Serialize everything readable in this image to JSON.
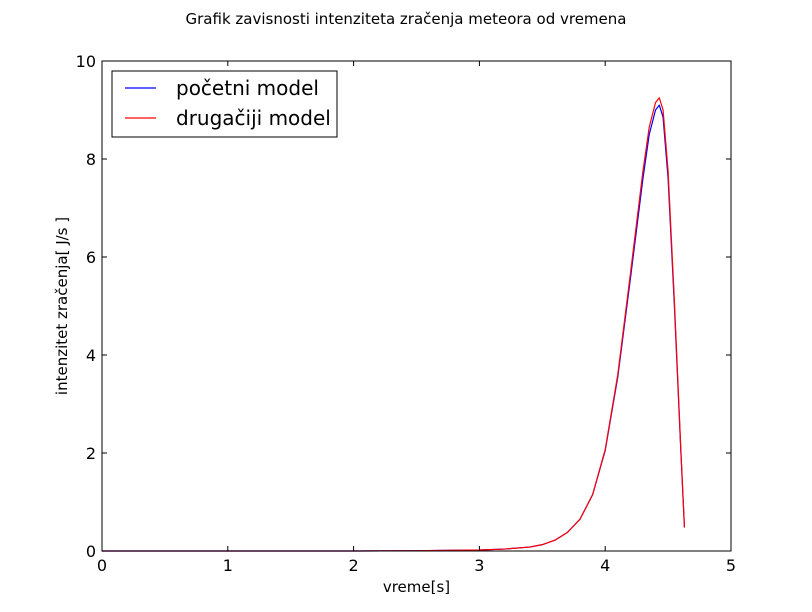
{
  "chart_data": {
    "type": "line",
    "title": "Grafik zavisnosti intenziteta zračenja meteora od vremena",
    "xlabel": "vreme[s]",
    "ylabel": "intenzitet zračenja[ J/s ]",
    "xlim": [
      0,
      5
    ],
    "ylim": [
      0,
      10
    ],
    "xticks": [
      0,
      1,
      2,
      3,
      4,
      5
    ],
    "yticks": [
      0,
      2,
      4,
      6,
      8,
      10
    ],
    "xtick_labels": [
      "0",
      "1",
      "2",
      "3",
      "4",
      "5"
    ],
    "ytick_labels": [
      "0",
      "2",
      "4",
      "6",
      "8",
      "10"
    ],
    "grid": false,
    "legend_position": "top-left",
    "series": [
      {
        "name": "početni model",
        "color": "#0000ff",
        "x": [
          0,
          1,
          2,
          2.5,
          3,
          3.2,
          3.4,
          3.5,
          3.6,
          3.7,
          3.8,
          3.9,
          4.0,
          4.1,
          4.2,
          4.3,
          4.35,
          4.4,
          4.43,
          4.46,
          4.5,
          4.55,
          4.6,
          4.63
        ],
        "y": [
          0,
          0,
          0,
          0.005,
          0.02,
          0.04,
          0.08,
          0.13,
          0.22,
          0.38,
          0.65,
          1.15,
          2.05,
          3.55,
          5.55,
          7.6,
          8.5,
          9.0,
          9.1,
          8.85,
          7.6,
          5.0,
          2.1,
          0.48
        ]
      },
      {
        "name": "drugačiji model",
        "color": "#ff0000",
        "x": [
          0,
          1,
          2,
          2.5,
          3,
          3.2,
          3.4,
          3.5,
          3.6,
          3.7,
          3.8,
          3.9,
          4.0,
          4.1,
          4.2,
          4.3,
          4.35,
          4.4,
          4.43,
          4.46,
          4.5,
          4.55,
          4.6,
          4.63
        ],
        "y": [
          0,
          0,
          0,
          0.005,
          0.02,
          0.04,
          0.08,
          0.13,
          0.22,
          0.38,
          0.65,
          1.15,
          2.07,
          3.6,
          5.65,
          7.75,
          8.65,
          9.15,
          9.25,
          9.0,
          7.75,
          5.1,
          2.15,
          0.48
        ]
      }
    ]
  }
}
